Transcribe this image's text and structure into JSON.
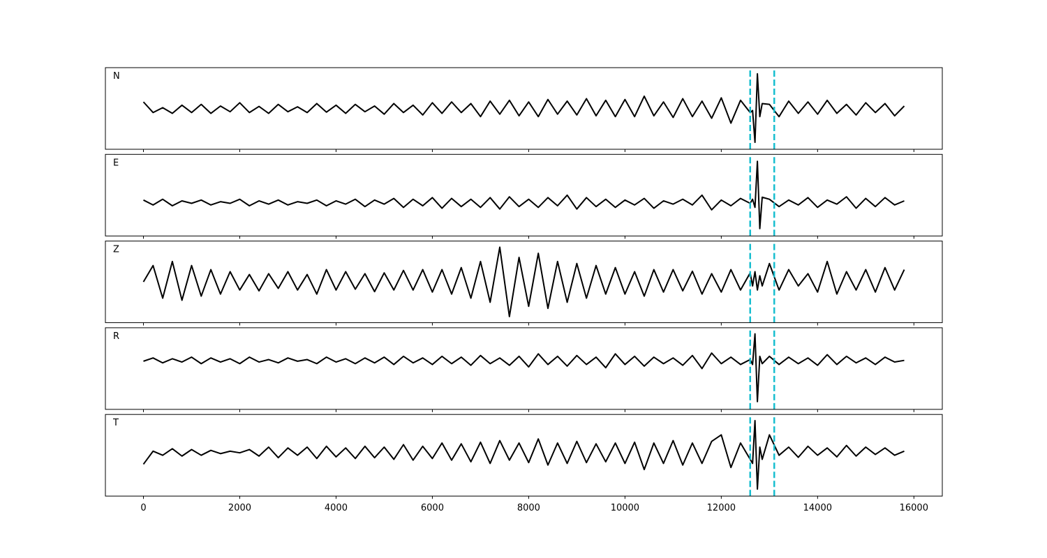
{
  "chart_data": {
    "type": "line",
    "x": [
      0,
      200,
      400,
      600,
      800,
      1000,
      1200,
      1400,
      1600,
      1800,
      2000,
      2200,
      2400,
      2600,
      2800,
      3000,
      3200,
      3400,
      3600,
      3800,
      4000,
      4200,
      4400,
      4600,
      4800,
      5000,
      5200,
      5400,
      5600,
      5800,
      6000,
      6200,
      6400,
      6600,
      6800,
      7000,
      7200,
      7400,
      7600,
      7800,
      8000,
      8200,
      8400,
      8600,
      8800,
      9000,
      9200,
      9400,
      9600,
      9800,
      10000,
      10200,
      10400,
      10600,
      10800,
      11000,
      11200,
      11400,
      11600,
      11800,
      12000,
      12200,
      12400,
      12600,
      12650,
      12700,
      12750,
      12800,
      12850,
      13000,
      13200,
      13400,
      13600,
      13800,
      14000,
      14200,
      14400,
      14600,
      14800,
      15000,
      15200,
      15400,
      15600,
      15800
    ],
    "series": [
      {
        "name": "N",
        "color": "#000000",
        "values": [
          0.16,
          -0.1,
          0.02,
          -0.12,
          0.08,
          -0.1,
          0.1,
          -0.12,
          0.06,
          -0.08,
          0.14,
          -0.1,
          0.05,
          -0.12,
          0.1,
          -0.08,
          0.04,
          -0.1,
          0.12,
          -0.09,
          0.08,
          -0.12,
          0.1,
          -0.08,
          0.06,
          -0.14,
          0.12,
          -0.1,
          0.08,
          -0.16,
          0.14,
          -0.12,
          0.16,
          -0.1,
          0.12,
          -0.2,
          0.18,
          -0.14,
          0.2,
          -0.18,
          0.16,
          -0.2,
          0.22,
          -0.14,
          0.18,
          -0.16,
          0.24,
          -0.18,
          0.2,
          -0.2,
          0.22,
          -0.2,
          0.3,
          -0.18,
          0.16,
          -0.22,
          0.24,
          -0.2,
          0.18,
          -0.24,
          0.26,
          -0.36,
          0.2,
          -0.1,
          -0.05,
          -0.83,
          0.85,
          -0.2,
          0.12,
          0.1,
          -0.2,
          0.18,
          -0.12,
          0.16,
          -0.14,
          0.2,
          -0.12,
          0.1,
          -0.16,
          0.14,
          -0.1,
          0.12,
          -0.18,
          0.06
        ]
      },
      {
        "name": "E",
        "color": "#000000",
        "values": [
          -0.12,
          -0.24,
          -0.1,
          -0.26,
          -0.14,
          -0.2,
          -0.12,
          -0.24,
          -0.16,
          -0.2,
          -0.1,
          -0.26,
          -0.14,
          -0.22,
          -0.12,
          -0.24,
          -0.16,
          -0.2,
          -0.12,
          -0.26,
          -0.14,
          -0.22,
          -0.1,
          -0.28,
          -0.12,
          -0.22,
          -0.08,
          -0.3,
          -0.1,
          -0.26,
          -0.06,
          -0.32,
          -0.08,
          -0.28,
          -0.1,
          -0.3,
          -0.06,
          -0.34,
          -0.04,
          -0.28,
          -0.1,
          -0.3,
          -0.06,
          -0.26,
          0.0,
          -0.34,
          -0.06,
          -0.28,
          -0.1,
          -0.3,
          -0.12,
          -0.24,
          -0.08,
          -0.32,
          -0.14,
          -0.22,
          -0.1,
          -0.24,
          0.0,
          -0.36,
          -0.12,
          -0.26,
          -0.08,
          -0.2,
          -0.1,
          -0.3,
          0.83,
          -0.82,
          -0.05,
          -0.1,
          -0.28,
          -0.12,
          -0.24,
          -0.06,
          -0.3,
          -0.12,
          -0.22,
          -0.04,
          -0.32,
          -0.08,
          -0.28,
          -0.06,
          -0.24,
          -0.14
        ]
      },
      {
        "name": "Z",
        "color": "#000000",
        "values": [
          0.0,
          0.4,
          -0.4,
          0.5,
          -0.45,
          0.4,
          -0.35,
          0.3,
          -0.3,
          0.25,
          -0.2,
          0.18,
          -0.22,
          0.2,
          -0.16,
          0.25,
          -0.2,
          0.18,
          -0.3,
          0.3,
          -0.2,
          0.25,
          -0.18,
          0.2,
          -0.24,
          0.22,
          -0.2,
          0.28,
          -0.2,
          0.3,
          -0.25,
          0.3,
          -0.3,
          0.35,
          -0.4,
          0.5,
          -0.5,
          0.85,
          -0.85,
          0.6,
          -0.6,
          0.7,
          -0.65,
          0.5,
          -0.5,
          0.45,
          -0.4,
          0.4,
          -0.3,
          0.35,
          -0.3,
          0.25,
          -0.35,
          0.3,
          -0.25,
          0.3,
          -0.22,
          0.26,
          -0.3,
          0.2,
          -0.25,
          0.3,
          -0.2,
          0.22,
          -0.1,
          0.25,
          -0.2,
          0.15,
          -0.1,
          0.45,
          -0.2,
          0.3,
          -0.1,
          0.2,
          -0.25,
          0.5,
          -0.3,
          0.25,
          -0.2,
          0.3,
          -0.25,
          0.35,
          -0.2,
          0.3
        ]
      },
      {
        "name": "R",
        "color": "#000000",
        "values": [
          0.18,
          0.26,
          0.14,
          0.24,
          0.16,
          0.28,
          0.12,
          0.26,
          0.16,
          0.24,
          0.12,
          0.28,
          0.16,
          0.22,
          0.14,
          0.26,
          0.18,
          0.22,
          0.12,
          0.28,
          0.16,
          0.24,
          0.12,
          0.26,
          0.14,
          0.28,
          0.1,
          0.3,
          0.14,
          0.26,
          0.1,
          0.3,
          0.12,
          0.28,
          0.08,
          0.32,
          0.12,
          0.26,
          0.08,
          0.3,
          0.04,
          0.36,
          0.1,
          0.3,
          0.06,
          0.32,
          0.1,
          0.28,
          0.02,
          0.36,
          0.1,
          0.3,
          0.06,
          0.28,
          0.12,
          0.26,
          0.08,
          0.32,
          0.0,
          0.38,
          0.12,
          0.28,
          0.1,
          0.22,
          0.1,
          0.85,
          -0.81,
          0.3,
          0.12,
          0.3,
          0.1,
          0.28,
          0.12,
          0.26,
          0.08,
          0.34,
          0.1,
          0.3,
          0.14,
          0.26,
          0.1,
          0.28,
          0.16,
          0.2
        ]
      },
      {
        "name": "T",
        "color": "#000000",
        "values": [
          -0.22,
          0.1,
          0.0,
          0.16,
          -0.02,
          0.14,
          0.0,
          0.12,
          0.04,
          0.1,
          0.06,
          0.14,
          -0.02,
          0.2,
          -0.06,
          0.18,
          0.0,
          0.2,
          -0.08,
          0.22,
          -0.04,
          0.18,
          -0.08,
          0.22,
          -0.06,
          0.2,
          -0.1,
          0.26,
          -0.12,
          0.22,
          -0.08,
          0.3,
          -0.12,
          0.28,
          -0.16,
          0.32,
          -0.2,
          0.36,
          -0.12,
          0.3,
          -0.18,
          0.4,
          -0.24,
          0.3,
          -0.2,
          0.34,
          -0.18,
          0.28,
          -0.16,
          0.3,
          -0.2,
          0.32,
          -0.35,
          0.3,
          -0.2,
          0.36,
          -0.24,
          0.3,
          -0.2,
          0.34,
          0.5,
          -0.3,
          0.3,
          -0.1,
          -0.2,
          0.85,
          -0.83,
          0.2,
          -0.1,
          0.5,
          0.0,
          0.2,
          -0.05,
          0.22,
          0.0,
          0.18,
          -0.04,
          0.24,
          -0.02,
          0.2,
          0.02,
          0.18,
          0.0,
          0.1
        ]
      }
    ],
    "xlim": [
      -790,
      16590
    ],
    "xticks": [
      0,
      2000,
      4000,
      6000,
      8000,
      10000,
      12000,
      14000,
      16000
    ],
    "ylim": [
      -1,
      1
    ],
    "vlines": [
      12600,
      13100
    ],
    "vline_color": "#17becf"
  }
}
